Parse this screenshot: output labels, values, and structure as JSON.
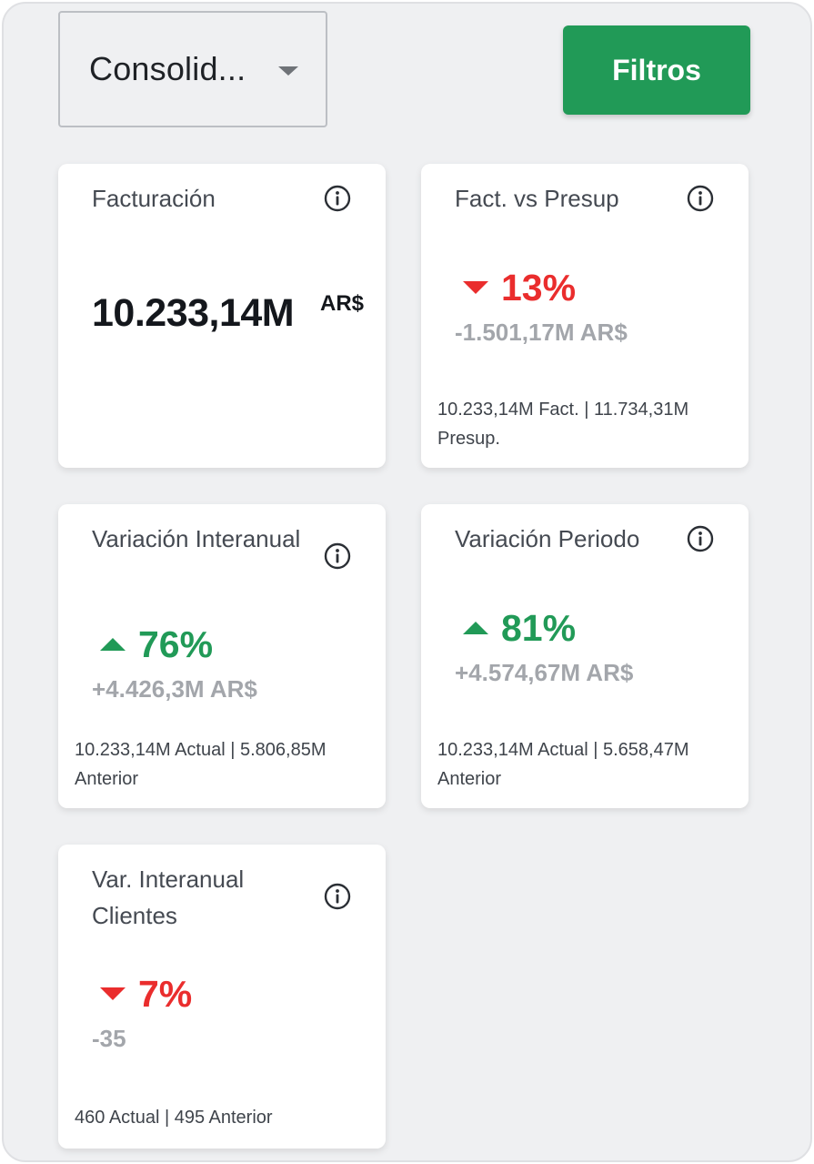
{
  "header": {
    "select_value": "Consolid...",
    "filter_button": "Filtros"
  },
  "colors": {
    "accent_green": "#219a57",
    "negative_red": "#ea2d2d",
    "muted_gray": "#a3a6ab"
  },
  "cards": {
    "facturacion": {
      "title": "Facturación",
      "value": "10.233,14M",
      "unit": "AR$"
    },
    "fact_vs_presup": {
      "title": "Fact. vs Presup",
      "direction": "down",
      "percent": "13%",
      "delta": "-1.501,17M AR$",
      "footer": "10.233,14M Fact. | 11.734,31M Presup."
    },
    "variacion_interanual": {
      "title": "Variación Interanual",
      "direction": "up",
      "percent": "76%",
      "delta": "+4.426,3M AR$",
      "footer": "10.233,14M Actual | 5.806,85M Anterior"
    },
    "variacion_periodo": {
      "title": "Variación Periodo",
      "direction": "up",
      "percent": "81%",
      "delta": "+4.574,67M AR$",
      "footer": "10.233,14M Actual | 5.658,47M Anterior"
    },
    "var_interanual_clientes": {
      "title": "Var. Interanual Clientes",
      "direction": "down",
      "percent": "7%",
      "delta": "-35",
      "footer": "460 Actual | 495 Anterior"
    }
  },
  "icons": {
    "info": "info-circle-icon",
    "dropdown": "chevron-down-icon",
    "up": "triangle-up-icon",
    "down": "triangle-down-icon"
  }
}
